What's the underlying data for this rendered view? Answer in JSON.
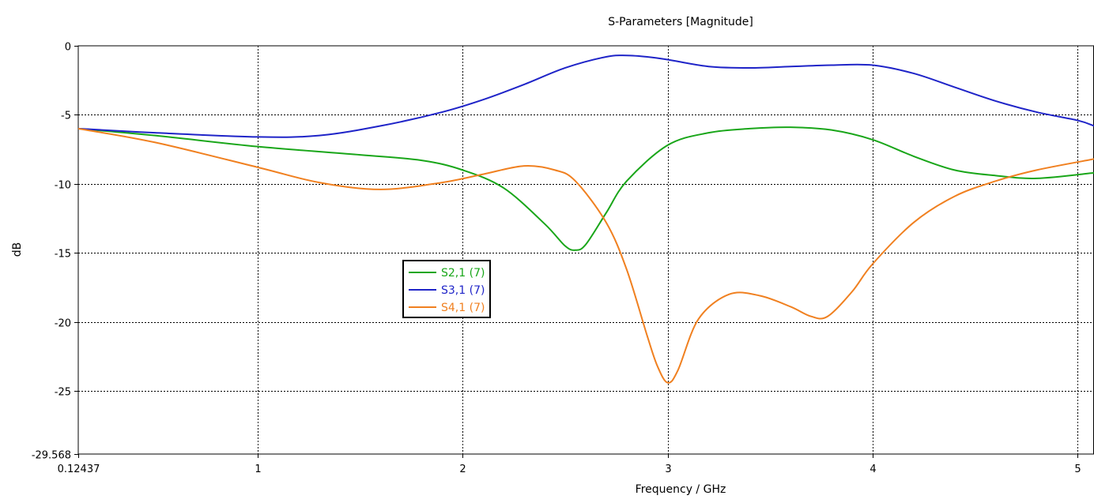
{
  "chart_data": {
    "type": "line",
    "title": "S-Parameters [Magnitude]",
    "xlabel": "Frequency / GHz",
    "ylabel": "dB",
    "xlim": [
      0.12437,
      5.08
    ],
    "ylim": [
      -29.568,
      0
    ],
    "xticks": [
      {
        "v": 0.12437,
        "label": "0.12437"
      },
      {
        "v": 1,
        "label": "1"
      },
      {
        "v": 2,
        "label": "2"
      },
      {
        "v": 3,
        "label": "3"
      },
      {
        "v": 4,
        "label": "4"
      },
      {
        "v": 5,
        "label": "5"
      }
    ],
    "yticks": [
      {
        "v": 0,
        "label": "0"
      },
      {
        "v": -5,
        "label": "-5"
      },
      {
        "v": -10,
        "label": "-10"
      },
      {
        "v": -15,
        "label": "-15"
      },
      {
        "v": -20,
        "label": "-20"
      },
      {
        "v": -25,
        "label": "-25"
      },
      {
        "v": -29.568,
        "label": "-29.568"
      }
    ],
    "grid": true,
    "legend_position": "left-middle",
    "series": [
      {
        "name": "S2,1 (7)",
        "color": "#19a619",
        "x": [
          0.12437,
          0.5,
          1.0,
          1.5,
          1.8,
          2.0,
          2.2,
          2.4,
          2.5,
          2.55,
          2.6,
          2.7,
          2.8,
          3.0,
          3.2,
          3.4,
          3.6,
          3.8,
          4.0,
          4.2,
          4.4,
          4.6,
          4.8,
          5.08
        ],
        "y": [
          -6.0,
          -6.5,
          -7.3,
          -7.9,
          -8.3,
          -9.0,
          -10.3,
          -12.9,
          -14.5,
          -14.8,
          -14.4,
          -12.1,
          -9.8,
          -7.2,
          -6.3,
          -6.0,
          -5.9,
          -6.1,
          -6.8,
          -8.0,
          -9.0,
          -9.4,
          -9.6,
          -9.2
        ]
      },
      {
        "name": "S3,1 (7)",
        "color": "#1f24c8",
        "x": [
          0.12437,
          0.5,
          1.0,
          1.3,
          1.6,
          1.9,
          2.1,
          2.3,
          2.5,
          2.7,
          2.8,
          2.9,
          3.0,
          3.2,
          3.4,
          3.6,
          3.8,
          4.0,
          4.2,
          4.4,
          4.6,
          4.8,
          5.0,
          5.08
        ],
        "y": [
          -6.0,
          -6.3,
          -6.6,
          -6.5,
          -5.8,
          -4.8,
          -3.9,
          -2.8,
          -1.6,
          -0.8,
          -0.7,
          -0.8,
          -1.0,
          -1.5,
          -1.6,
          -1.5,
          -1.4,
          -1.4,
          -2.0,
          -3.0,
          -4.0,
          -4.8,
          -5.4,
          -5.8
        ]
      },
      {
        "name": "S4,1 (7)",
        "color": "#f08020",
        "x": [
          0.12437,
          0.5,
          1.0,
          1.3,
          1.6,
          1.9,
          2.1,
          2.3,
          2.45,
          2.55,
          2.7,
          2.8,
          2.9,
          2.95,
          3.0,
          3.05,
          3.15,
          3.3,
          3.45,
          3.6,
          3.7,
          3.78,
          3.9,
          4.0,
          4.2,
          4.4,
          4.6,
          4.8,
          5.08
        ],
        "y": [
          -6.0,
          -7.0,
          -8.8,
          -9.9,
          -10.4,
          -9.9,
          -9.3,
          -8.7,
          -9.0,
          -9.8,
          -12.8,
          -16.2,
          -21.0,
          -23.2,
          -24.4,
          -23.5,
          -19.8,
          -18.0,
          -18.1,
          -18.9,
          -19.6,
          -19.6,
          -17.8,
          -15.8,
          -12.8,
          -10.9,
          -9.8,
          -9.0,
          -8.2
        ]
      }
    ]
  }
}
